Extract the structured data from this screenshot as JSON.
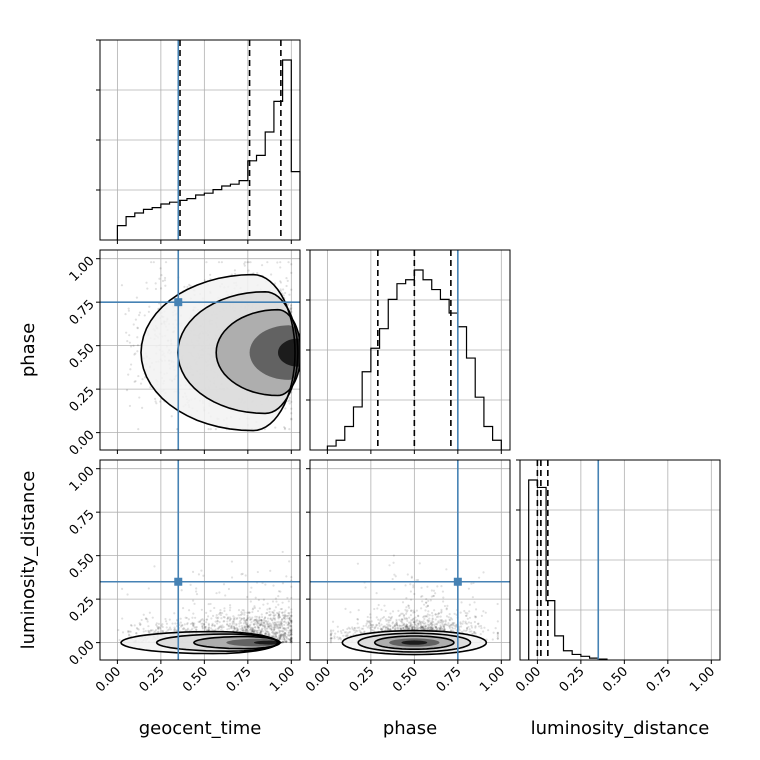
{
  "chart_data": {
    "type": "corner",
    "parameters": [
      "geocent_time",
      "phase",
      "luminosity_distance"
    ],
    "axis_label_text": {
      "x": [
        "geocent_time",
        "phase",
        "luminosity_distance"
      ],
      "y_rows": [
        "",
        "phase",
        "luminosity_distance"
      ]
    },
    "tick_values": [
      0.0,
      0.25,
      0.5,
      0.75,
      1.0
    ],
    "tick_labels": [
      "0.00",
      "0.25",
      "0.50",
      "0.75",
      "1.00"
    ],
    "ranges": [
      [
        -0.1,
        1.05
      ],
      [
        -0.1,
        1.05
      ],
      [
        -0.1,
        1.05
      ]
    ],
    "truths": [
      0.35,
      0.75,
      0.35
    ],
    "truth_color": "#4682b4",
    "grid": true,
    "quantiles": [
      0.16,
      0.5,
      0.84
    ],
    "marginals": [
      {
        "parameter": "geocent_time",
        "bin_edges": [
          0.0,
          0.05,
          0.1,
          0.15,
          0.2,
          0.25,
          0.3,
          0.35,
          0.4,
          0.45,
          0.5,
          0.55,
          0.6,
          0.65,
          0.7,
          0.75,
          0.8,
          0.85,
          0.9,
          0.95,
          1.0,
          1.05
        ],
        "counts": [
          0.08,
          0.13,
          0.15,
          0.17,
          0.18,
          0.2,
          0.21,
          0.22,
          0.23,
          0.25,
          0.26,
          0.28,
          0.3,
          0.31,
          0.33,
          0.44,
          0.47,
          0.6,
          0.77,
          1.0,
          0.38
        ],
        "quantile_values": [
          0.36,
          0.76,
          0.94
        ]
      },
      {
        "parameter": "phase",
        "bin_edges": [
          0.0,
          0.05,
          0.1,
          0.15,
          0.2,
          0.25,
          0.3,
          0.35,
          0.4,
          0.45,
          0.5,
          0.55,
          0.6,
          0.65,
          0.7,
          0.75,
          0.8,
          0.85,
          0.9,
          0.95,
          1.0
        ],
        "counts": [
          0.02,
          0.05,
          0.12,
          0.22,
          0.4,
          0.52,
          0.62,
          0.77,
          0.85,
          0.87,
          0.92,
          0.87,
          0.82,
          0.77,
          0.7,
          0.63,
          0.47,
          0.27,
          0.12,
          0.05
        ],
        "quantile_values": [
          0.29,
          0.5,
          0.71
        ]
      },
      {
        "parameter": "luminosity_distance",
        "bin_edges": [
          -0.05,
          0.0,
          0.05,
          0.1,
          0.15,
          0.2,
          0.25,
          0.3,
          0.35,
          0.4
        ],
        "counts": [
          0.97,
          0.93,
          0.32,
          0.13,
          0.05,
          0.03,
          0.02,
          0.01,
          0.005
        ],
        "quantile_values": [
          0.0,
          0.02,
          0.06
        ]
      }
    ],
    "joint_2d": [
      {
        "x_parameter": "geocent_time",
        "y_parameter": "phase",
        "samples_description": "dense scatter concentrated near geocent_time ~0.95, phase ~0.45"
      },
      {
        "x_parameter": "geocent_time",
        "y_parameter": "luminosity_distance",
        "samples_description": "scatter concentrated near luminosity_distance ~0, increasing density toward geocent_time ~1"
      },
      {
        "x_parameter": "phase",
        "y_parameter": "luminosity_distance",
        "samples_description": "scatter concentrated near luminosity_distance ~0, centered at phase ~0.5"
      }
    ]
  }
}
